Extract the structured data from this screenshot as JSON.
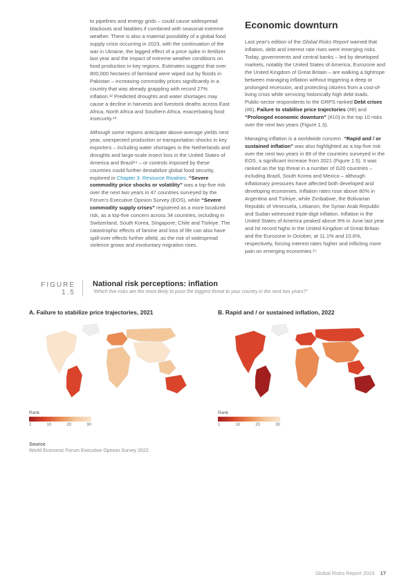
{
  "body": {
    "left": {
      "p1": "to pipelines and energy grids – could cause widespread blackouts and fatalities if combined with seasonal extreme weather. There is also a material possibility of a global food supply crisis occurring in 2023, with the continuation of the war in Ukraine, the lagged effect of a price spike in fertilizer last year and the impact of extreme weather conditions on food production in key regions. Estimates suggest that over 800,000 hectares of farmland were wiped out by floods in Pakistan – increasing commodity prices significantly in a country that was already grappling with record 27% inflation.¹² Predicted droughts and water shortages may cause a decline in harvests and livestock deaths across East Africa, North Africa and Southern Africa, exacerbating food insecurity.¹³",
      "p2a": "Although some regions anticipate above-average yields next year, unexpected production or transportation shocks in key exporters – including water shortages in the Netherlands and droughts and large-scale insect loss in the United States of America and Brazil¹⁴ – or controls imposed by these countries could further destabilize global food security, explored in ",
      "p2_link": "Chapter 3: Resource Rivalries",
      "p2b": ". ",
      "p2_bold1": "“Severe commodity price shocks or volatility”",
      "p2c": " was a top-five risk over the next two years in 47 countries surveyed by the Forum's Executive Opinion Survey (EOS), while ",
      "p2_bold2": "“Severe commodity supply crises”",
      "p2d": " registered as a more localized risk, as a top-five concern across 34 countries, including in Switzerland, South Korea, Singapore, Chile and Türkiye. The catastrophic effects of famine and loss of life can also have spill-over effects further afield, as the risk of widespread violence grows and involuntary migration rises."
    },
    "right": {
      "heading": "Economic downturn",
      "p1a": "Last year's edition of the ",
      "p1_ital": "Global Risks Report",
      "p1b": " warned that inflation, debt and interest rate rises were emerging risks. Today, governments and central banks – led by developed markets, notably the United States of America, Eurozone and the United Kingdom of Great Britain – are walking a tightrope between managing inflation without triggering a deep or prolonged recession, and protecting citizens from a cost-of-living crisis while servicing historically high debt loads. Public-sector respondents to the GRPS ranked ",
      "p1_bold1": "Debt crises",
      "p1c": " (#6), ",
      "p1_bold2": "Failure to stabilise price trajectories",
      "p1d": " (#8) and ",
      "p1_bold3": "“Prolonged economic downturn”",
      "p1e": " (#10) in the top 10 risks over the next two years (Figure 1.3).",
      "p2a": "Managing inflation is a worldwide concern. ",
      "p2_bold1": "“Rapid and / or sustained inflation”",
      "p2b": " was also highlighted as a top-five risk over the next two years in 89 of the countries surveyed in the EOS, a significant increase from 2021 (Figure 1.5). It was ranked as the top threat in a number of G20 countries – including Brazil, South Korea and Mexico – although inflationary pressures have affected both developed and developing economies. Inflation rates rose above 80% in Argentina and Türkiye, while Zimbabwe, the Bolivarian Republic of Venezuela, Lebanon, the Syrian Arab Republic and Sudan witnessed triple-digit inflation. Inflation in the United States of America peaked above 9% in June last year and hit record highs in the United Kingdom of Great Britain and the Eurozone in October, at 11.1% and 10.6%, respectively, forcing interest rates higher and inflicting more pain on emerging economies.¹⁵"
    }
  },
  "figure": {
    "number": "FIGURE 1.5",
    "title": "National risk perceptions: inflation",
    "subtitle": "“Which five risks are the most likely to pose the biggest threat to your country in the next two years?”"
  },
  "maps": {
    "a": {
      "label": "A. Failure to stabilize price trajectories, 2021"
    },
    "b": {
      "label": "B. Rapid and / or sustained inflation, 2022"
    },
    "legend_title": "Rank",
    "ticks": [
      "1",
      "10",
      "20",
      "30"
    ],
    "colors": {
      "dark": "#a11f1f",
      "mid": "#d9442b",
      "light": "#e98b52",
      "pale": "#f3c79a",
      "vpale": "#fae4cc",
      "empty": "#eeeeee"
    }
  },
  "source": {
    "head": "Source",
    "text": "World Economic Forum Executive Opinion Survey 2022."
  },
  "footer": {
    "doc": "Global Risks Report 2023",
    "page": "17"
  }
}
